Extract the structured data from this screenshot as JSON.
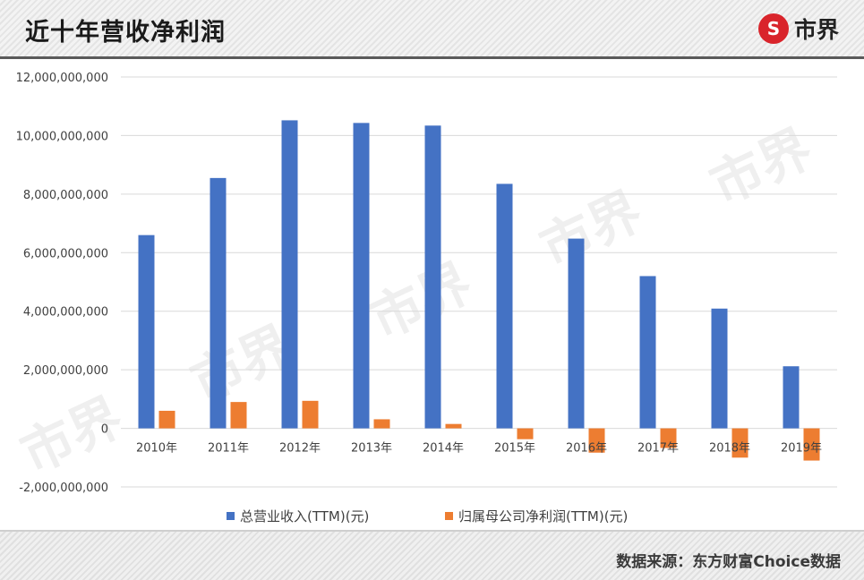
{
  "header": {
    "title": "近十年营收净利润",
    "logo_text": "市界",
    "logo_symbol": "S"
  },
  "footer": {
    "source": "数据来源：东方财富Choice数据"
  },
  "watermark": {
    "text": "市界"
  },
  "chart_data": {
    "type": "bar",
    "title": "近十年营收净利润",
    "categories": [
      "2010年",
      "2011年",
      "2012年",
      "2013年",
      "2014年",
      "2015年",
      "2016年",
      "2017年",
      "2018年",
      "2019年"
    ],
    "series": [
      {
        "name": "总营业收入(TTM)(元)",
        "color": "#4472c4",
        "values": [
          6600000000,
          8550000000,
          10520000000,
          10430000000,
          10340000000,
          8350000000,
          6480000000,
          5200000000,
          4090000000,
          2120000000
        ]
      },
      {
        "name": "归属母公司净利润(TTM)(元)",
        "color": "#ed7d31",
        "values": [
          600000000,
          900000000,
          940000000,
          310000000,
          150000000,
          -370000000,
          -830000000,
          -670000000,
          -1000000000,
          -1100000000
        ]
      }
    ],
    "yticks": [
      12000000000,
      10000000000,
      8000000000,
      6000000000,
      4000000000,
      2000000000,
      0,
      -2000000000
    ],
    "ytick_labels": [
      "12,000,000,000",
      "10,000,000,000",
      "8,000,000,000",
      "6,000,000,000",
      "4,000,000,000",
      "2,000,000,000",
      "0",
      "-2,000,000,000"
    ],
    "ylim": [
      -2000000000,
      12000000000
    ],
    "grid": true,
    "legend": "bottom"
  }
}
